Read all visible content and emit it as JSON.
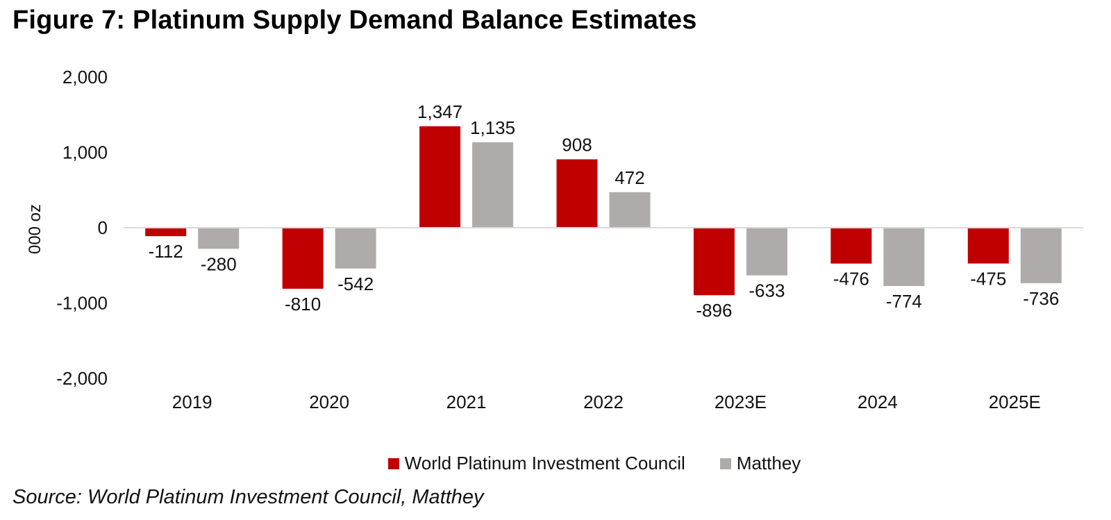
{
  "title": "Figure 7: Platinum Supply Demand Balance Estimates",
  "source": "Source: World Platinum Investment Council, Matthey",
  "chart_data": {
    "type": "bar",
    "title": "Figure 7: Platinum Supply Demand Balance Estimates",
    "xlabel": "",
    "ylabel": "000 oz",
    "ylim": [
      -2000,
      2000
    ],
    "yticks": [
      2000,
      1000,
      0,
      -1000,
      -2000
    ],
    "ytick_labels": [
      "2,000",
      "1,000",
      "0",
      "-1,000",
      "-2,000"
    ],
    "categories": [
      "2019",
      "2020",
      "2021",
      "2022",
      "2023E",
      "2024",
      "2025E"
    ],
    "series": [
      {
        "name": "World Platinum Investment Council",
        "color": "#C00000",
        "values": [
          -112,
          -810,
          1347,
          908,
          -896,
          -476,
          -475
        ],
        "labels": [
          "-112",
          "-810",
          "1,347",
          "908",
          "-896",
          "-476",
          "-475"
        ]
      },
      {
        "name": "Matthey",
        "color": "#AFABAB",
        "values": [
          -280,
          -542,
          1135,
          472,
          -633,
          -774,
          -736
        ],
        "labels": [
          "-280",
          "-542",
          "1,135",
          "472",
          "-633",
          "-774",
          "-736"
        ]
      }
    ],
    "grid": false,
    "legend_position": "bottom-center"
  }
}
